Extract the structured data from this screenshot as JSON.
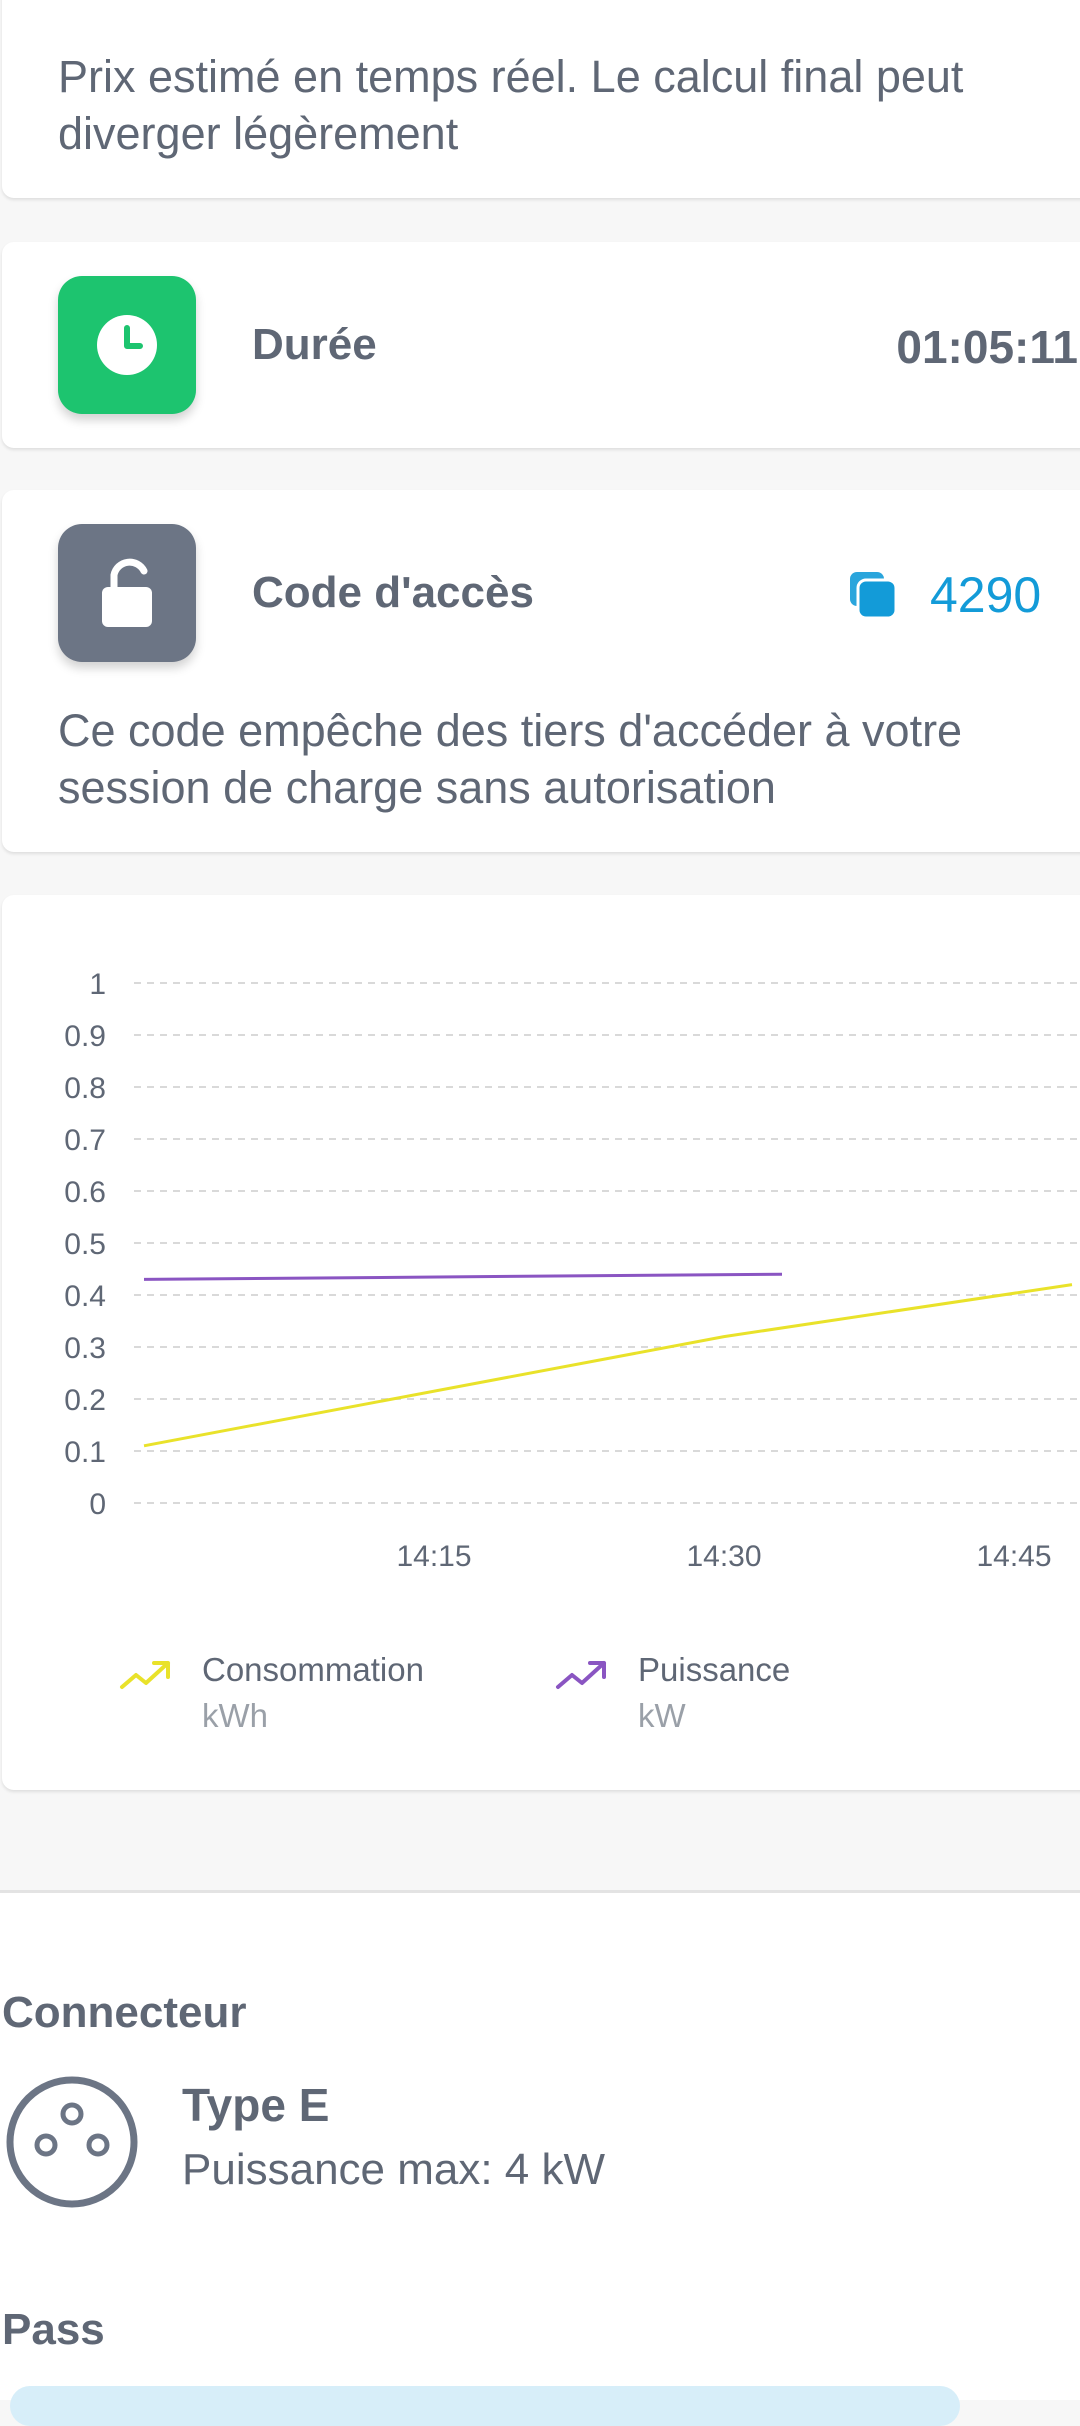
{
  "notice": {
    "text": "Prix estimé en temps réel. Le calcul final peut diverger légèrement"
  },
  "duration": {
    "label": "Durée",
    "value": "01:05:11",
    "icon": "clock-icon",
    "color": "#1dc46f"
  },
  "access_code": {
    "label": "Code d'accès",
    "value": "4290",
    "icon": "unlock-icon",
    "copy_icon": "copy-icon",
    "color": "#6c7585",
    "accent": "#139bd8",
    "description": "Ce code empêche des tiers d'accéder à votre session de charge sans autorisation"
  },
  "chart_data": {
    "type": "line",
    "ylim": [
      0,
      1
    ],
    "y_ticks": [
      "1",
      "0.9",
      "0.8",
      "0.7",
      "0.6",
      "0.5",
      "0.4",
      "0.3",
      "0.2",
      "0.1",
      "0"
    ],
    "x_ticks": [
      "14:15",
      "14:30",
      "14:45"
    ],
    "grid": true,
    "series": [
      {
        "name": "Consommation",
        "unit": "kWh",
        "color": "#e9e22a",
        "x": [
          "14:00",
          "14:30",
          "14:48"
        ],
        "values": [
          0.11,
          0.32,
          0.42
        ]
      },
      {
        "name": "Puissance",
        "unit": "kW",
        "color": "#8a55c2",
        "x": [
          "14:00",
          "14:33"
        ],
        "values": [
          0.43,
          0.44
        ]
      }
    ],
    "legend_position": "bottom"
  },
  "connector": {
    "title": "Connecteur",
    "type": "Type E",
    "power": "Puissance max: 4 kW",
    "icon": "socket-type-e-icon"
  },
  "pass": {
    "title": "Pass"
  }
}
